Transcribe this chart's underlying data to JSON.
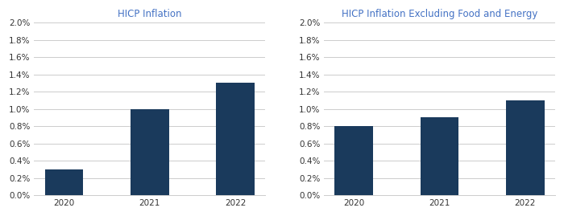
{
  "chart1": {
    "title": "HICP Inflation",
    "categories": [
      "2020",
      "2021",
      "2022"
    ],
    "values": [
      0.003,
      0.01,
      0.013
    ],
    "bar_color": "#1a3a5c"
  },
  "chart2": {
    "title": "HICP Inflation Excluding Food and Energy",
    "categories": [
      "2020",
      "2021",
      "2022"
    ],
    "values": [
      0.008,
      0.009,
      0.011
    ],
    "bar_color": "#1a3a5c"
  },
  "ylim": [
    0.0,
    0.02
  ],
  "yticks": [
    0.0,
    0.002,
    0.004,
    0.006,
    0.008,
    0.01,
    0.012,
    0.014,
    0.016,
    0.018,
    0.02
  ],
  "title_color": "#4472c4",
  "tick_color": "#333333",
  "grid_color": "#cccccc",
  "background_color": "#ffffff",
  "title_fontsize": 8.5,
  "tick_fontsize": 7.5
}
